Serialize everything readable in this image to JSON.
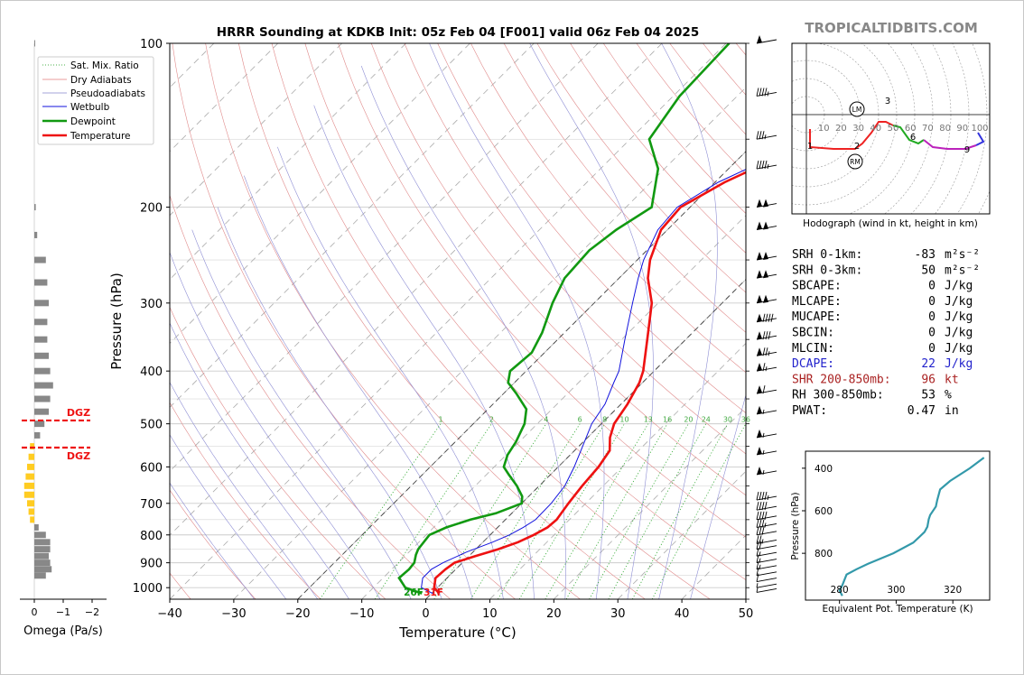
{
  "title": "HRRR Sounding at KDKB Init: 05z Feb 04 [F001] valid 06z Feb 04 2025",
  "brand": "TROPICALTIDBITS.COM",
  "colors": {
    "temperature": "#ee1111",
    "dewpoint": "#119911",
    "wetbulb": "#1111dd",
    "dcape": "#2222cc",
    "shear": "#aa2222",
    "theta": "#3399aa"
  },
  "chart_data": [
    {
      "type": "line",
      "name": "skew-t",
      "xlabel": "Temperature (°C)",
      "ylabel": "Pressure (hPa)",
      "xlim": [
        -40,
        50
      ],
      "ylim": [
        1050,
        100
      ],
      "y_scale": "log",
      "grid": true,
      "x_ticks": [
        "−40",
        "−30",
        "−20",
        "−10",
        "0",
        "10",
        "20",
        "30",
        "40",
        "50"
      ],
      "y_ticks": [
        "100",
        "200",
        "300",
        "400",
        "500",
        "600",
        "700",
        "800",
        "900",
        "1000"
      ],
      "legend": {
        "placement": "top-left",
        "items": [
          "Sat. Mix. Ratio",
          "Dry Adiabats",
          "Pseudoadiabats",
          "Wetbulb",
          "Dewpoint",
          "Temperature"
        ]
      },
      "mixing_ratio_labels": [
        "1",
        "2",
        "4",
        "6",
        "8",
        "10",
        "13",
        "16",
        "20",
        "24",
        "30",
        "36"
      ],
      "surface_labels": {
        "dewpoint": "26F",
        "temperature": "31F"
      },
      "series": [
        {
          "name": "Temperature",
          "points": [
            [
              1025,
              1.2
            ],
            [
              1000,
              -0.5
            ],
            [
              960,
              -1.8
            ],
            [
              925,
              -1.6
            ],
            [
              900,
              -1.2
            ],
            [
              875,
              1.0
            ],
            [
              850,
              3.5
            ],
            [
              825,
              5.5
            ],
            [
              800,
              6.8
            ],
            [
              775,
              7.8
            ],
            [
              750,
              8.0
            ],
            [
              700,
              7.3
            ],
            [
              650,
              6.7
            ],
            [
              600,
              6.3
            ],
            [
              560,
              5.5
            ],
            [
              530,
              3.5
            ],
            [
              500,
              2.0
            ],
            [
              460,
              1.0
            ],
            [
              420,
              -0.5
            ],
            [
              400,
              -1.7
            ],
            [
              350,
              -6.0
            ],
            [
              300,
              -11.0
            ],
            [
              270,
              -15.5
            ],
            [
              250,
              -18.0
            ],
            [
              220,
              -21.0
            ],
            [
              200,
              -21.5
            ],
            [
              180,
              -18.5
            ],
            [
              160,
              -13.5
            ],
            [
              150,
              -11.0
            ],
            [
              125,
              -7.5
            ],
            [
              100,
              -4.8
            ]
          ]
        },
        {
          "name": "Dewpoint",
          "points": [
            [
              1025,
              -1.5
            ],
            [
              1000,
              -5.0
            ],
            [
              960,
              -7.5
            ],
            [
              925,
              -7.3
            ],
            [
              900,
              -7.5
            ],
            [
              870,
              -8.5
            ],
            [
              850,
              -9.0
            ],
            [
              800,
              -9.5
            ],
            [
              775,
              -8.0
            ],
            [
              750,
              -5.5
            ],
            [
              730,
              -2.5
            ],
            [
              700,
              0.0
            ],
            [
              680,
              -1.0
            ],
            [
              650,
              -3.5
            ],
            [
              620,
              -6.5
            ],
            [
              600,
              -8.5
            ],
            [
              570,
              -9.8
            ],
            [
              540,
              -10.5
            ],
            [
              500,
              -12.0
            ],
            [
              470,
              -14.0
            ],
            [
              440,
              -18.0
            ],
            [
              420,
              -21.0
            ],
            [
              400,
              -22.5
            ],
            [
              370,
              -22.0
            ],
            [
              340,
              -23.5
            ],
            [
              300,
              -26.5
            ],
            [
              270,
              -28.5
            ],
            [
              240,
              -29.0
            ],
            [
              220,
              -28.0
            ],
            [
              200,
              -26.0
            ],
            [
              170,
              -31.0
            ],
            [
              150,
              -37.0
            ],
            [
              125,
              -39.0
            ],
            [
              100,
              -39.5
            ]
          ]
        },
        {
          "name": "Wetbulb",
          "points": [
            [
              1025,
              0.2
            ],
            [
              1000,
              -2.5
            ],
            [
              960,
              -3.8
            ],
            [
              925,
              -3.8
            ],
            [
              900,
              -3.0
            ],
            [
              860,
              -1.0
            ],
            [
              825,
              1.5
            ],
            [
              800,
              3.0
            ],
            [
              775,
              4.0
            ],
            [
              750,
              4.7
            ],
            [
              700,
              4.6
            ],
            [
              650,
              4.0
            ],
            [
              600,
              2.5
            ],
            [
              560,
              1.0
            ],
            [
              500,
              -1.5
            ],
            [
              460,
              -2.5
            ],
            [
              420,
              -4.5
            ],
            [
              400,
              -5.5
            ],
            [
              350,
              -9.5
            ],
            [
              300,
              -14.0
            ],
            [
              270,
              -17.0
            ],
            [
              250,
              -19.0
            ],
            [
              220,
              -21.5
            ],
            [
              200,
              -22.0
            ],
            [
              180,
              -19.5
            ],
            [
              160,
              -14.5
            ],
            [
              150,
              -12.0
            ],
            [
              125,
              -8.5
            ],
            [
              100,
              -5.2
            ]
          ]
        }
      ],
      "wind_barbs": [
        [
          100,
          50
        ],
        [
          125,
          45
        ],
        [
          150,
          35
        ],
        [
          170,
          45
        ],
        [
          200,
          100
        ],
        [
          220,
          100
        ],
        [
          250,
          100
        ],
        [
          270,
          100
        ],
        [
          300,
          100
        ],
        [
          325,
          90
        ],
        [
          350,
          80
        ],
        [
          375,
          75
        ],
        [
          400,
          65
        ],
        [
          440,
          60
        ],
        [
          480,
          55
        ],
        [
          530,
          55
        ],
        [
          570,
          55
        ],
        [
          620,
          55
        ],
        [
          690,
          45
        ],
        [
          720,
          40
        ],
        [
          750,
          40
        ],
        [
          775,
          35
        ],
        [
          800,
          30
        ],
        [
          830,
          25
        ],
        [
          850,
          20
        ],
        [
          875,
          15
        ],
        [
          900,
          15
        ],
        [
          925,
          15
        ],
        [
          950,
          10
        ],
        [
          975,
          10
        ],
        [
          1000,
          5
        ],
        [
          1020,
          5
        ]
      ]
    },
    {
      "type": "bar",
      "name": "omega",
      "xlabel": "Omega (Pa/s)",
      "x_ticks": [
        "0",
        "−1",
        "−2"
      ],
      "xlim": [
        0.5,
        -2.5
      ],
      "dgz_label": "DGZ",
      "dgz_pressures": [
        493,
        553
      ],
      "bars": [
        [
          100,
          0.0
        ],
        [
          200,
          -0.05
        ],
        [
          225,
          -0.1
        ],
        [
          250,
          -0.4
        ],
        [
          275,
          -0.45
        ],
        [
          300,
          -0.5
        ],
        [
          325,
          -0.45
        ],
        [
          350,
          -0.45
        ],
        [
          375,
          -0.5
        ],
        [
          400,
          -0.55
        ],
        [
          425,
          -0.65
        ],
        [
          450,
          -0.55
        ],
        [
          475,
          -0.5
        ],
        [
          500,
          -0.35
        ],
        [
          525,
          -0.2
        ],
        [
          550,
          0.15
        ],
        [
          575,
          0.2
        ],
        [
          600,
          0.25
        ],
        [
          625,
          0.3
        ],
        [
          650,
          0.35
        ],
        [
          675,
          0.35
        ],
        [
          700,
          0.25
        ],
        [
          725,
          0.2
        ],
        [
          750,
          0.15
        ],
        [
          775,
          -0.15
        ],
        [
          800,
          -0.4
        ],
        [
          825,
          -0.55
        ],
        [
          850,
          -0.55
        ],
        [
          875,
          -0.5
        ],
        [
          900,
          -0.55
        ],
        [
          925,
          -0.6
        ],
        [
          950,
          -0.4
        ]
      ],
      "colors": {
        "descent": "#888888",
        "ascent": "#ffcc22",
        "dgz": "#ee1111"
      }
    },
    {
      "type": "line",
      "name": "hodograph",
      "xlabel": "Hodograph (wind in kt, height in km)",
      "ring_labels": [
        "10",
        "20",
        "30",
        "40",
        "50",
        "60",
        "70",
        "80",
        "90",
        "100"
      ],
      "height_labels": [
        [
          "1",
          2,
          -17
        ],
        [
          "2",
          28,
          -17
        ],
        [
          "3",
          45,
          8
        ],
        [
          "6",
          59,
          -12
        ],
        [
          "9",
          89,
          -19
        ]
      ],
      "storm_motion": [
        [
          "LM",
          28,
          3
        ],
        [
          "RM",
          27,
          -26
        ]
      ],
      "segments": [
        {
          "range": "0-1 km",
          "color": "#ee2222",
          "points": [
            [
              2,
              -8
            ],
            [
              2,
              -18
            ],
            [
              15,
              -19
            ],
            [
              27,
              -19
            ],
            [
              31,
              -16
            ],
            [
              36,
              -10
            ],
            [
              40,
              -4
            ],
            [
              44,
              -4
            ],
            [
              48,
              -6
            ]
          ]
        },
        {
          "range": "3-6 km",
          "color": "#22aa22",
          "points": [
            [
              48,
              -6
            ],
            [
              52,
              -7
            ],
            [
              57,
              -14
            ],
            [
              62,
              -16
            ],
            [
              65,
              -14
            ]
          ]
        },
        {
          "range": "6-9 km",
          "color": "#bb22bb",
          "points": [
            [
              65,
              -14
            ],
            [
              70,
              -18
            ],
            [
              78,
              -19
            ],
            [
              88,
              -19
            ],
            [
              94,
              -17
            ]
          ]
        },
        {
          "range": "9+ km",
          "color": "#3333dd",
          "points": [
            [
              94,
              -17
            ],
            [
              98,
              -15
            ],
            [
              95,
              -10
            ]
          ]
        }
      ]
    },
    {
      "type": "line",
      "name": "theta-e",
      "xlabel": "Equivalent Pot. Temperature (K)",
      "ylabel": "Pressure (hPa)",
      "x_ticks": [
        "280",
        "300",
        "320"
      ],
      "y_ticks": [
        "400",
        "600",
        "800"
      ],
      "xlim": [
        268,
        333
      ],
      "ylim": [
        1020,
        320
      ],
      "points": [
        [
          1000,
          281
        ],
        [
          975,
          280
        ],
        [
          950,
          281
        ],
        [
          900,
          282.5
        ],
        [
          875,
          286
        ],
        [
          850,
          290
        ],
        [
          800,
          299
        ],
        [
          750,
          306
        ],
        [
          700,
          310
        ],
        [
          675,
          311
        ],
        [
          640,
          311.5
        ],
        [
          620,
          312
        ],
        [
          580,
          314
        ],
        [
          550,
          314.5
        ],
        [
          500,
          315.5
        ],
        [
          460,
          319
        ],
        [
          400,
          326
        ],
        [
          350,
          331
        ]
      ]
    }
  ],
  "indices": [
    {
      "label": "SRH 0-1km:",
      "value": "-83",
      "unit": "m²s⁻²",
      "color": "#000000"
    },
    {
      "label": "SRH 0-3km:",
      "value": "50",
      "unit": "m²s⁻²",
      "color": "#000000"
    },
    {
      "label": "SBCAPE:",
      "value": "0",
      "unit": "J/kg",
      "color": "#000000"
    },
    {
      "label": "MLCAPE:",
      "value": "0",
      "unit": "J/kg",
      "color": "#000000"
    },
    {
      "label": "MUCAPE:",
      "value": "0",
      "unit": "J/kg",
      "color": "#000000"
    },
    {
      "label": "SBCIN:",
      "value": "0",
      "unit": "J/kg",
      "color": "#000000"
    },
    {
      "label": "MLCIN:",
      "value": "0",
      "unit": "J/kg",
      "color": "#000000"
    },
    {
      "label": "DCAPE:",
      "value": "22",
      "unit": "J/kg",
      "color": "#2222cc"
    },
    {
      "label": "SHR 200-850mb:",
      "value": "96",
      "unit": "kt",
      "color": "#aa2222"
    },
    {
      "label": "RH 300-850mb:",
      "value": "53",
      "unit": "%",
      "color": "#000000"
    },
    {
      "label": "PWAT:",
      "value": "0.47",
      "unit": "in",
      "color": "#000000"
    }
  ]
}
